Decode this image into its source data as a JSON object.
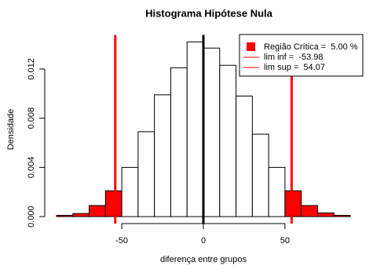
{
  "chart_data": {
    "type": "histogram",
    "title": "Histograma Hipótese Nula",
    "xlabel": "diferença entre grupos",
    "ylabel": "Densidade",
    "bins": [
      -90,
      -80,
      -70,
      -60,
      -50,
      -40,
      -30,
      -20,
      -10,
      0,
      10,
      20,
      30,
      40,
      50,
      60,
      70,
      80,
      90
    ],
    "values": [
      0.0001,
      0.00025,
      0.0009,
      0.0021,
      0.004,
      0.0069,
      0.0099,
      0.0121,
      0.0142,
      0.0137,
      0.0123,
      0.0098,
      0.0067,
      0.004,
      0.0021,
      0.0009,
      0.0003,
      0.0001
    ],
    "colors": [
      "#ff0000",
      "#ff0000",
      "#ff0000",
      "#ff0000",
      "#ffffff",
      "#ffffff",
      "#ffffff",
      "#ffffff",
      "#ffffff",
      "#ffffff",
      "#ffffff",
      "#ffffff",
      "#ffffff",
      "#ffffff",
      "#ff0000",
      "#ff0000",
      "#ff0000",
      "#ff0000"
    ],
    "xlim": [
      -97.2,
      97.2
    ],
    "xticks": [
      -50,
      0,
      50
    ],
    "ylim": [
      -0.000568,
      0.01477
    ],
    "yticks": [
      {
        "value": 0,
        "label": "0.000"
      },
      {
        "value": 0.004,
        "label": "0.004"
      },
      {
        "value": 0.008,
        "label": "0.008"
      },
      {
        "value": 0.012,
        "label": "0.012"
      }
    ],
    "vlines": [
      {
        "value": -53.98,
        "color": "#ff0000",
        "label": "lim inf =  -53.98"
      },
      {
        "value": 54.07,
        "color": "#ff0000",
        "label": "lim sup =  54.07"
      },
      {
        "value": 0,
        "color": "#000000"
      }
    ],
    "critical_region": {
      "label": "Região Crítica =  5.00 %",
      "color": "#ff0000"
    }
  }
}
